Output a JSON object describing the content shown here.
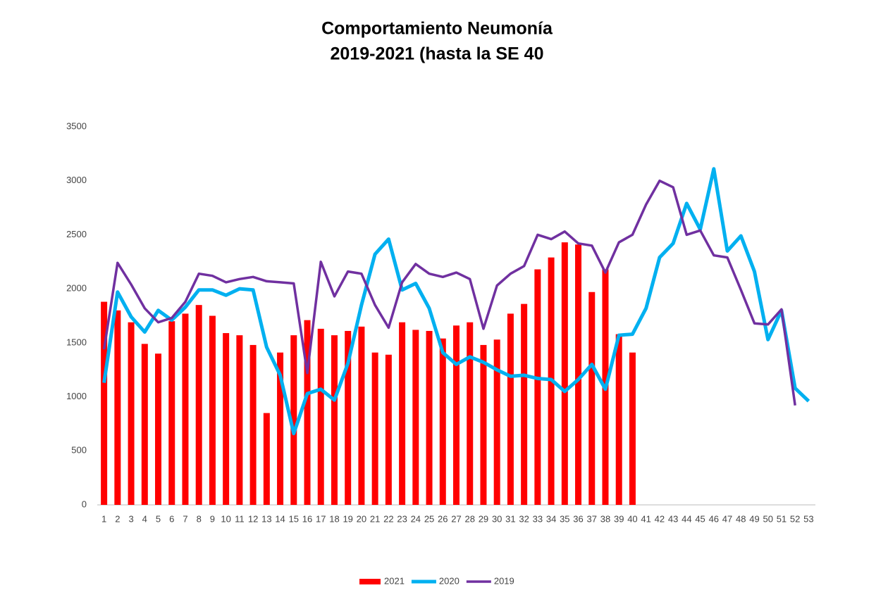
{
  "chart_data": {
    "type": "bar_line",
    "title": "Comportamiento Neumonía",
    "subtitle": "2019-2021 (hasta la SE 40",
    "categories": [
      "1",
      "2",
      "3",
      "4",
      "5",
      "6",
      "7",
      "8",
      "9",
      "10",
      "11",
      "12",
      "13",
      "14",
      "15",
      "16",
      "17",
      "18",
      "19",
      "20",
      "21",
      "22",
      "23",
      "24",
      "25",
      "26",
      "27",
      "28",
      "29",
      "30",
      "31",
      "32",
      "33",
      "34",
      "35",
      "36",
      "37",
      "38",
      "39",
      "40",
      "41",
      "42",
      "43",
      "44",
      "45",
      "46",
      "47",
      "48",
      "49",
      "50",
      "51",
      "52",
      "53"
    ],
    "series": [
      {
        "name": "2021",
        "type": "bar",
        "color": "#ff0000",
        "values": [
          1880,
          1800,
          1690,
          1490,
          1400,
          1700,
          1770,
          1850,
          1750,
          1590,
          1570,
          1480,
          850,
          1410,
          1570,
          1710,
          1630,
          1570,
          1610,
          1650,
          1410,
          1390,
          1690,
          1620,
          1610,
          1540,
          1660,
          1690,
          1480,
          1530,
          1770,
          1860,
          2180,
          2290,
          2430,
          2410,
          1970,
          2180,
          1580,
          1410,
          null,
          null,
          null,
          null,
          null,
          null,
          null,
          null,
          null,
          null,
          null,
          null,
          null
        ]
      },
      {
        "name": "2020",
        "type": "line",
        "color": "#00b0f0",
        "values": [
          1130,
          1970,
          1740,
          1600,
          1800,
          1710,
          1830,
          1990,
          1990,
          1940,
          2000,
          1990,
          1460,
          1200,
          660,
          1030,
          1070,
          970,
          1310,
          1850,
          2320,
          2460,
          1990,
          2050,
          1820,
          1410,
          1300,
          1370,
          1320,
          1250,
          1190,
          1200,
          1170,
          1160,
          1050,
          1160,
          1300,
          1070,
          1570,
          1580,
          1820,
          2290,
          2420,
          2790,
          2550,
          3110,
          2350,
          2490,
          2160,
          1530,
          1800,
          1080,
          960
        ]
      },
      {
        "name": "2019",
        "type": "line",
        "color": "#7030a0",
        "values": [
          1440,
          2240,
          2040,
          1820,
          1690,
          1730,
          1880,
          2140,
          2120,
          2060,
          2090,
          2110,
          2070,
          2060,
          2050,
          1220,
          2250,
          1930,
          2160,
          2140,
          1850,
          1640,
          2060,
          2230,
          2140,
          2110,
          2150,
          2090,
          1630,
          2030,
          2140,
          2210,
          2500,
          2460,
          2530,
          2420,
          2400,
          2150,
          2430,
          2500,
          2780,
          3000,
          2940,
          2500,
          2540,
          2310,
          2290,
          1990,
          1680,
          1670,
          1810,
          920,
          null
        ]
      }
    ],
    "ylim": [
      0,
      3500
    ],
    "yticks": [
      0,
      500,
      1000,
      1500,
      2000,
      2500,
      3000,
      3500
    ],
    "grid": false,
    "legend": "bottom"
  }
}
